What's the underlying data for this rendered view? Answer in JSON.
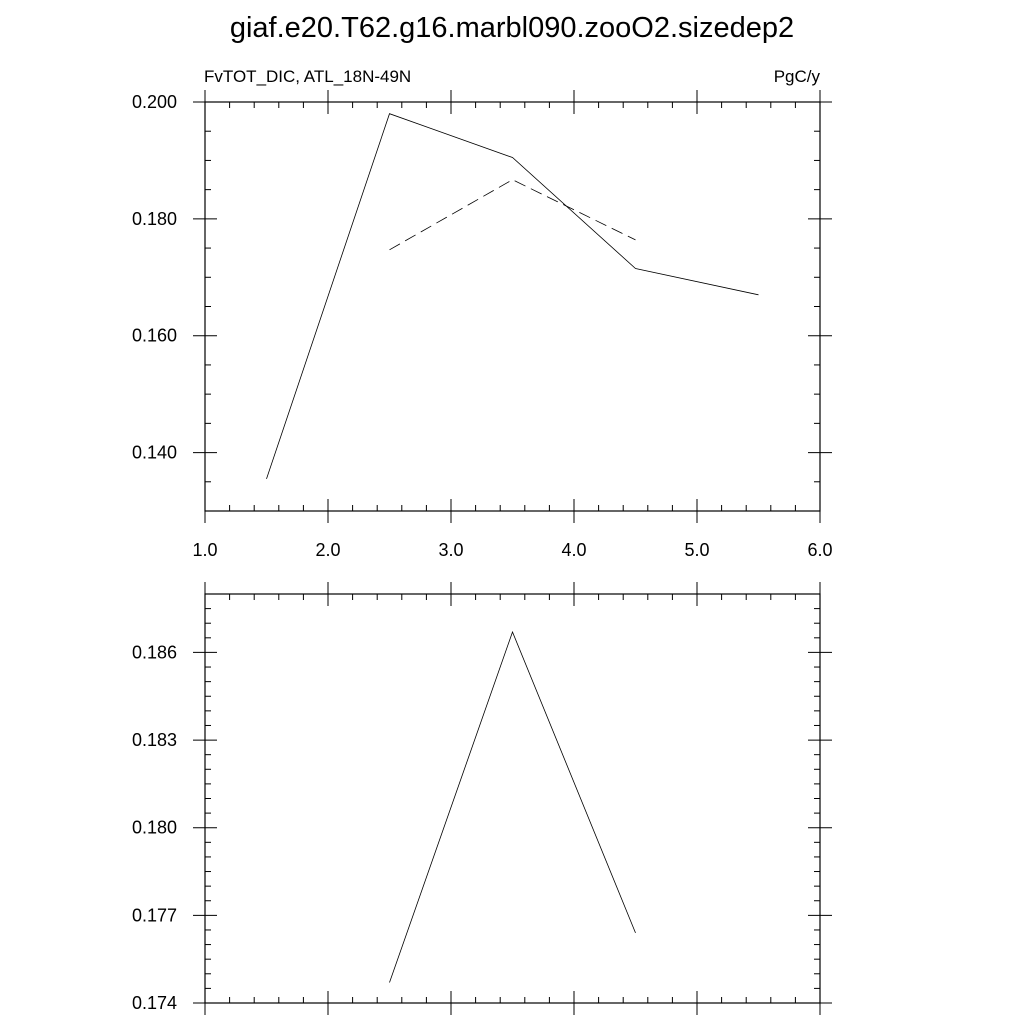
{
  "figure": {
    "title": "giaf.e20.T62.g16.marbl090.zooO2.sizedep2",
    "left_label": "FvTOT_DIC, ATL_18N-49N",
    "right_label": "PgC/y"
  },
  "chart_data": [
    {
      "type": "line",
      "xlim": [
        1.0,
        6.0
      ],
      "ylim": [
        0.13,
        0.2
      ],
      "x_ticks": [
        1.0,
        2.0,
        3.0,
        4.0,
        5.0,
        6.0
      ],
      "x_tick_labels": [
        "1.0",
        "2.0",
        "3.0",
        "4.0",
        "5.0",
        "6.0"
      ],
      "x_minor_step": 0.2,
      "y_ticks": [
        0.14,
        0.16,
        0.18,
        0.2
      ],
      "y_tick_labels": [
        "0.140",
        "0.160",
        "0.180",
        "0.200"
      ],
      "y_minor_step": 0.005,
      "grid": false,
      "series": [
        {
          "style": "solid",
          "color": "#000000",
          "x": [
            1.5,
            2.5,
            3.5,
            4.5,
            5.5
          ],
          "values": [
            0.1355,
            0.198,
            0.1905,
            0.1715,
            0.167
          ]
        },
        {
          "style": "dashed",
          "color": "#000000",
          "x": [
            2.5,
            3.5,
            4.5
          ],
          "values": [
            0.1747,
            0.1867,
            0.1764
          ]
        }
      ]
    },
    {
      "type": "line",
      "xlim": [
        1.0,
        6.0
      ],
      "ylim": [
        0.174,
        0.188
      ],
      "x_ticks": [
        1.0,
        2.0,
        3.0,
        4.0,
        5.0,
        6.0
      ],
      "x_tick_labels": [],
      "x_minor_step": 0.2,
      "y_ticks": [
        0.174,
        0.177,
        0.18,
        0.183,
        0.186
      ],
      "y_tick_labels": [
        "0.174",
        "0.177",
        "0.180",
        "0.183",
        "0.186"
      ],
      "y_minor_step": 0.0005,
      "grid": false,
      "series": [
        {
          "style": "solid",
          "color": "#000000",
          "x": [
            2.5,
            3.5,
            4.5
          ],
          "values": [
            0.1747,
            0.1867,
            0.1764
          ]
        }
      ]
    }
  ]
}
